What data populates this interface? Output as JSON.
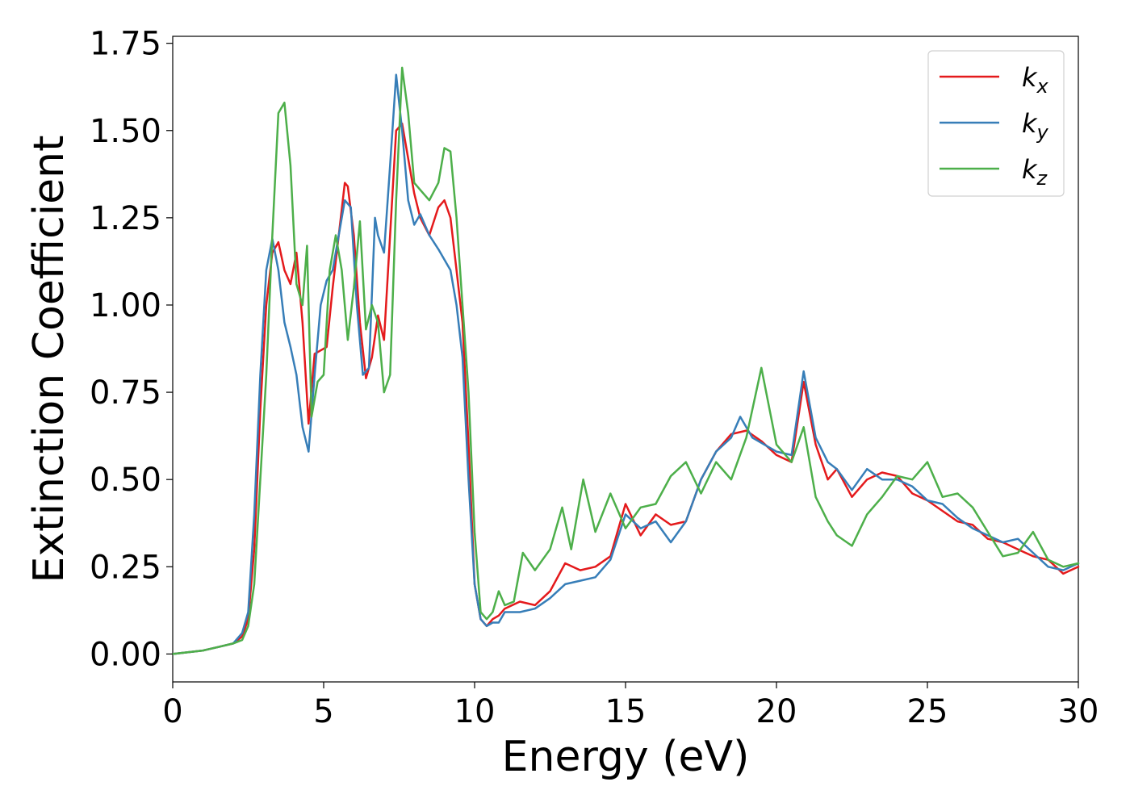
{
  "chart_data": {
    "type": "line",
    "title": "",
    "xlabel": "Energy (eV)",
    "ylabel": "Extinction Coefficient",
    "xlim": [
      0,
      30
    ],
    "ylim": [
      -0.08,
      1.77
    ],
    "xticks": [
      0,
      5,
      10,
      15,
      20,
      25,
      30
    ],
    "xtick_labels": [
      "0",
      "5",
      "10",
      "15",
      "20",
      "25",
      "30"
    ],
    "yticks": [
      0.0,
      0.25,
      0.5,
      0.75,
      1.0,
      1.25,
      1.5,
      1.75
    ],
    "ytick_labels": [
      "0.00",
      "0.25",
      "0.50",
      "0.75",
      "1.00",
      "1.25",
      "1.50",
      "1.75"
    ],
    "grid": false,
    "legend_position": "top-right",
    "series": [
      {
        "name": "k",
        "subscript": "x",
        "color": "#e41a1c",
        "x": [
          0,
          1,
          1.5,
          2,
          2.3,
          2.5,
          2.7,
          2.9,
          3.1,
          3.3,
          3.5,
          3.7,
          3.9,
          4.1,
          4.3,
          4.5,
          4.7,
          4.9,
          5.1,
          5.3,
          5.5,
          5.7,
          5.8,
          6.0,
          6.2,
          6.4,
          6.6,
          6.8,
          7.0,
          7.2,
          7.4,
          7.6,
          7.8,
          8.0,
          8.2,
          8.5,
          8.8,
          9.0,
          9.2,
          9.4,
          9.6,
          9.8,
          10.0,
          10.2,
          10.4,
          10.6,
          10.8,
          11.0,
          11.5,
          12.0,
          12.5,
          13.0,
          13.5,
          14.0,
          14.5,
          15.0,
          15.5,
          16.0,
          16.5,
          17.0,
          17.5,
          18.0,
          18.5,
          19.0,
          19.5,
          20.0,
          20.5,
          20.9,
          21.3,
          21.7,
          22.0,
          22.5,
          23.0,
          23.5,
          24.0,
          24.5,
          25.0,
          25.5,
          26.0,
          26.5,
          27.0,
          27.5,
          28.0,
          28.5,
          29.0,
          29.5,
          30.0
        ],
        "y": [
          0.0,
          0.01,
          0.02,
          0.03,
          0.05,
          0.1,
          0.3,
          0.7,
          1.0,
          1.15,
          1.18,
          1.1,
          1.06,
          1.15,
          0.95,
          0.66,
          0.86,
          0.87,
          0.88,
          1.05,
          1.2,
          1.35,
          1.34,
          1.2,
          0.95,
          0.79,
          0.85,
          0.97,
          0.9,
          1.2,
          1.5,
          1.52,
          1.42,
          1.32,
          1.25,
          1.2,
          1.28,
          1.3,
          1.25,
          1.1,
          0.95,
          0.6,
          0.2,
          0.1,
          0.08,
          0.1,
          0.11,
          0.13,
          0.15,
          0.14,
          0.18,
          0.26,
          0.24,
          0.25,
          0.28,
          0.43,
          0.34,
          0.4,
          0.37,
          0.38,
          0.5,
          0.58,
          0.63,
          0.64,
          0.61,
          0.57,
          0.55,
          0.78,
          0.6,
          0.5,
          0.53,
          0.45,
          0.5,
          0.52,
          0.51,
          0.46,
          0.44,
          0.41,
          0.38,
          0.37,
          0.33,
          0.32,
          0.3,
          0.28,
          0.27,
          0.23,
          0.25
        ]
      },
      {
        "name": "k",
        "subscript": "y",
        "color": "#377eb8",
        "x": [
          0,
          1,
          1.5,
          2,
          2.3,
          2.5,
          2.7,
          2.9,
          3.1,
          3.3,
          3.5,
          3.7,
          3.9,
          4.1,
          4.3,
          4.5,
          4.7,
          4.9,
          5.1,
          5.3,
          5.5,
          5.7,
          5.9,
          6.1,
          6.3,
          6.5,
          6.7,
          6.8,
          7.0,
          7.2,
          7.4,
          7.6,
          7.8,
          8.0,
          8.2,
          8.5,
          8.8,
          9.0,
          9.2,
          9.4,
          9.6,
          9.8,
          10.0,
          10.2,
          10.4,
          10.6,
          10.8,
          11.0,
          11.5,
          12.0,
          12.5,
          13.0,
          13.5,
          14.0,
          14.5,
          15.0,
          15.5,
          16.0,
          16.5,
          17.0,
          17.5,
          18.0,
          18.5,
          18.8,
          19.2,
          19.6,
          20.0,
          20.5,
          20.9,
          21.3,
          21.7,
          22.0,
          22.5,
          23.0,
          23.5,
          24.0,
          24.5,
          25.0,
          25.5,
          26.0,
          26.5,
          27.0,
          27.5,
          28.0,
          28.5,
          29.0,
          29.5,
          30.0
        ],
        "y": [
          0.0,
          0.01,
          0.02,
          0.03,
          0.06,
          0.12,
          0.4,
          0.8,
          1.1,
          1.19,
          1.1,
          0.95,
          0.88,
          0.8,
          0.65,
          0.58,
          0.8,
          1.0,
          1.07,
          1.1,
          1.2,
          1.3,
          1.28,
          1.0,
          0.8,
          0.82,
          1.25,
          1.2,
          1.15,
          1.4,
          1.66,
          1.5,
          1.3,
          1.23,
          1.26,
          1.2,
          1.16,
          1.13,
          1.1,
          1.0,
          0.85,
          0.5,
          0.2,
          0.1,
          0.08,
          0.09,
          0.09,
          0.12,
          0.12,
          0.13,
          0.16,
          0.2,
          0.21,
          0.22,
          0.27,
          0.4,
          0.36,
          0.38,
          0.32,
          0.38,
          0.5,
          0.58,
          0.62,
          0.68,
          0.62,
          0.6,
          0.58,
          0.57,
          0.81,
          0.62,
          0.55,
          0.53,
          0.47,
          0.53,
          0.5,
          0.5,
          0.48,
          0.44,
          0.43,
          0.39,
          0.36,
          0.34,
          0.32,
          0.33,
          0.29,
          0.25,
          0.24,
          0.26
        ]
      },
      {
        "name": "k",
        "subscript": "z",
        "color": "#4daf4a",
        "x": [
          0,
          1,
          1.5,
          2,
          2.3,
          2.5,
          2.7,
          2.9,
          3.1,
          3.3,
          3.5,
          3.7,
          3.9,
          4.1,
          4.3,
          4.45,
          4.6,
          4.8,
          5.0,
          5.2,
          5.4,
          5.6,
          5.8,
          6.0,
          6.2,
          6.4,
          6.6,
          6.8,
          7.0,
          7.2,
          7.4,
          7.6,
          7.8,
          8.0,
          8.2,
          8.5,
          8.8,
          9.0,
          9.2,
          9.4,
          9.6,
          9.8,
          10.0,
          10.2,
          10.4,
          10.6,
          10.8,
          11.0,
          11.3,
          11.6,
          12.0,
          12.5,
          12.9,
          13.2,
          13.6,
          14.0,
          14.5,
          15.0,
          15.5,
          16.0,
          16.5,
          17.0,
          17.5,
          18.0,
          18.5,
          19.0,
          19.5,
          20.0,
          20.5,
          20.9,
          21.3,
          21.7,
          22.0,
          22.5,
          23.0,
          23.5,
          24.0,
          24.5,
          25.0,
          25.5,
          26.0,
          26.5,
          27.0,
          27.5,
          28.0,
          28.5,
          29.0,
          29.5,
          30.0
        ],
        "y": [
          0.0,
          0.01,
          0.02,
          0.03,
          0.04,
          0.08,
          0.2,
          0.5,
          0.8,
          1.2,
          1.55,
          1.58,
          1.4,
          1.06,
          1.0,
          1.17,
          0.68,
          0.78,
          0.8,
          1.1,
          1.2,
          1.1,
          0.9,
          1.05,
          1.24,
          0.93,
          1.0,
          0.95,
          0.75,
          0.8,
          1.3,
          1.68,
          1.55,
          1.35,
          1.33,
          1.3,
          1.35,
          1.45,
          1.44,
          1.25,
          1.0,
          0.75,
          0.35,
          0.12,
          0.1,
          0.12,
          0.18,
          0.14,
          0.15,
          0.29,
          0.24,
          0.3,
          0.42,
          0.3,
          0.5,
          0.35,
          0.46,
          0.36,
          0.42,
          0.43,
          0.51,
          0.55,
          0.46,
          0.55,
          0.5,
          0.62,
          0.82,
          0.6,
          0.55,
          0.65,
          0.45,
          0.38,
          0.34,
          0.31,
          0.4,
          0.45,
          0.51,
          0.5,
          0.55,
          0.45,
          0.46,
          0.42,
          0.35,
          0.28,
          0.29,
          0.35,
          0.27,
          0.25,
          0.26
        ]
      }
    ]
  }
}
